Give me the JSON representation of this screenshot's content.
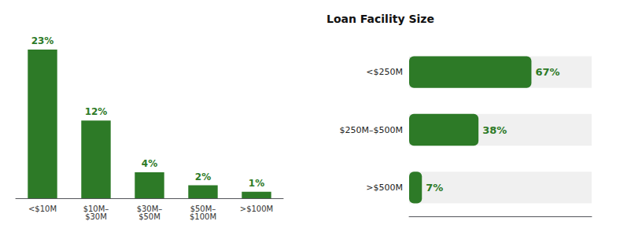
{
  "chart_data": [
    {
      "type": "bar",
      "categories": [
        "<$10M",
        "$10M–\n$30M",
        "$30M–\n$50M",
        "$50M–\n$100M",
        ">$100M"
      ],
      "values": [
        23,
        12,
        4,
        2,
        1
      ],
      "value_labels": [
        "23%",
        "12%",
        "4%",
        "2%",
        "1%"
      ],
      "data_labels": true,
      "color": "#2d7a27",
      "ylim": [
        0,
        27
      ],
      "grid": false,
      "tick_labels": "x"
    },
    {
      "type": "bar",
      "orientation": "horizontal",
      "title": "Loan Facility Size",
      "categories": [
        "<$250M",
        "$250M–$500M",
        ">$500M"
      ],
      "values": [
        67,
        38,
        7
      ],
      "value_labels": [
        "67%",
        "38%",
        "7%"
      ],
      "data_labels": true,
      "color": "#2d7a27",
      "xlim": [
        0,
        100
      ],
      "grid": false,
      "tick_labels": "y"
    }
  ]
}
